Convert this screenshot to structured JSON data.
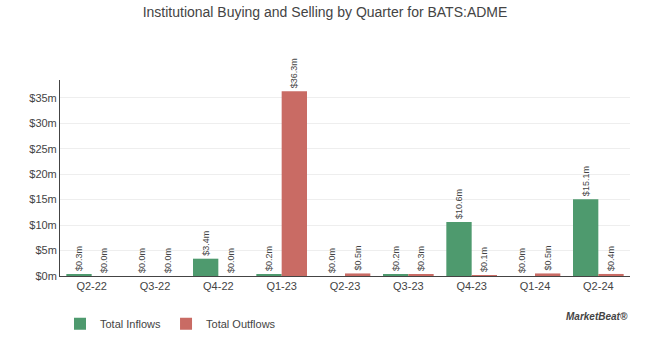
{
  "chart_data": {
    "type": "bar",
    "title": "Institutional Buying and Selling by Quarter for BATS:ADME",
    "categories": [
      "Q2-22",
      "Q3-22",
      "Q4-22",
      "Q1-23",
      "Q2-23",
      "Q3-23",
      "Q4-23",
      "Q1-24",
      "Q2-24"
    ],
    "series": [
      {
        "name": "Total Inflows",
        "color": "#4e9a6e",
        "values": [
          0.3,
          0.0,
          3.4,
          0.2,
          0.0,
          0.2,
          10.6,
          0.0,
          15.1
        ],
        "value_labels": [
          "$0.3m",
          "$0.0m",
          "$3.4m",
          "$0.2m",
          "$0.0m",
          "$0.2m",
          "$10.6m",
          "$0.0m",
          "$15.1m"
        ]
      },
      {
        "name": "Total Outflows",
        "color": "#c96b64",
        "values": [
          0.0,
          0.0,
          0.0,
          36.3,
          0.5,
          0.3,
          0.1,
          0.5,
          0.4
        ],
        "value_labels": [
          "$0.0m",
          "$0.0m",
          "$0.0m",
          "$36.3m",
          "$0.5m",
          "$0.3m",
          "$0.1m",
          "$0.5m",
          "$0.4m"
        ]
      }
    ],
    "ylim": [
      0,
      38.5
    ],
    "yticks": [
      {
        "value": 0,
        "label": "$0m"
      },
      {
        "value": 5,
        "label": "$5m"
      },
      {
        "value": 10,
        "label": "$10m"
      },
      {
        "value": 15,
        "label": "$15m"
      },
      {
        "value": 20,
        "label": "$20m"
      },
      {
        "value": 25,
        "label": "$25m"
      },
      {
        "value": 30,
        "label": "$30m"
      },
      {
        "value": 35,
        "label": "$35m"
      }
    ],
    "grid": true,
    "legend": "bottom",
    "data_labels": true,
    "annotations": [
      "MarketBeat®"
    ]
  }
}
